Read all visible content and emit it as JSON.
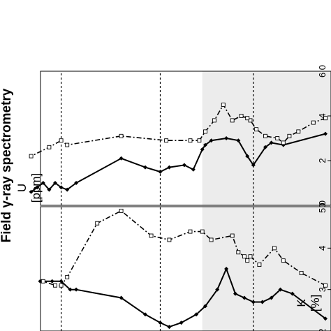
{
  "title": "Field γ-ray spectrometry",
  "panels": [
    {
      "name": "U",
      "unit": "[ppm]"
    },
    {
      "name": "K",
      "unit": "[%]"
    }
  ],
  "chart_data": [
    {
      "type": "line",
      "title": "U",
      "ylabel": "[ppm]",
      "orientation": "rotated-90-ccw",
      "value_axis": {
        "range": [
          0,
          6
        ],
        "ticks": [
          0,
          2,
          4,
          6
        ],
        "tick_labels": [
          "0",
          "2",
          "4",
          "6 0"
        ]
      },
      "position_axis": {
        "range": [
          0,
          100
        ]
      },
      "shaded_interval": [
        0,
        41
      ],
      "dashed_lines": [
        24,
        55,
        88
      ],
      "series": [
        {
          "style": "solid-filled-diamond",
          "x": [
            0,
            14,
            18,
            20,
            24,
            26,
            29,
            33,
            38,
            40,
            41,
            44,
            47,
            52,
            55,
            60,
            68,
            83,
            86,
            88,
            90,
            92,
            94,
            96,
            98
          ],
          "y": [
            3.2,
            2.7,
            2.8,
            2.6,
            1.8,
            2.2,
            2.9,
            3.0,
            2.9,
            2.7,
            2.5,
            1.6,
            1.8,
            1.7,
            1.5,
            1.7,
            2.1,
            1.0,
            0.7,
            0.8,
            1.0,
            0.7,
            1.0,
            0.8,
            0.6
          ]
        },
        {
          "style": "dash-dot-open-square",
          "x": [
            0,
            4,
            9,
            12,
            14,
            16,
            20,
            23,
            25,
            26,
            28,
            31,
            34,
            37,
            40,
            42,
            45,
            53,
            68,
            86,
            88,
            92,
            98
          ],
          "y": [
            3.9,
            3.7,
            3.3,
            3.1,
            2.8,
            3.0,
            3.1,
            3.4,
            3.8,
            3.9,
            4.0,
            3.8,
            4.5,
            3.8,
            3.3,
            2.9,
            2.9,
            2.9,
            3.1,
            2.7,
            2.9,
            2.6,
            2.2
          ]
        }
      ]
    },
    {
      "type": "line",
      "title": "K",
      "ylabel": "[%]",
      "orientation": "rotated-90-ccw",
      "value_axis": {
        "range": [
          2,
          5
        ],
        "ticks": [
          2,
          3,
          4,
          5
        ],
        "tick_labels": [
          "2",
          "3",
          "4",
          "5 0"
        ]
      },
      "position_axis": {
        "range": [
          0,
          100
        ]
      },
      "shaded_interval": [
        0,
        41
      ],
      "dashed_lines": [
        24,
        55,
        88
      ],
      "series": [
        {
          "style": "solid-filled-diamond",
          "x": [
            0,
            11,
            15,
            18,
            21,
            24,
            27,
            30,
            33,
            36,
            40,
            43,
            48,
            52,
            55,
            60,
            68,
            83,
            85,
            88,
            91,
            95
          ],
          "y": [
            2.3,
            2.9,
            3.0,
            2.8,
            2.7,
            2.7,
            2.8,
            2.9,
            3.5,
            3.0,
            2.6,
            2.4,
            2.2,
            2.1,
            2.2,
            2.4,
            2.8,
            3.0,
            3.0,
            3.2,
            3.2,
            3.2
          ]
        },
        {
          "style": "dash-dot-open-square",
          "x": [
            0,
            8,
            14,
            17,
            22,
            25,
            26,
            27,
            29,
            31,
            38,
            41,
            45,
            52,
            58,
            68,
            76,
            86,
            88,
            90,
            94
          ],
          "y": [
            3.1,
            3.4,
            3.7,
            4.0,
            3.6,
            3.8,
            3.7,
            3.8,
            3.9,
            4.3,
            4.2,
            4.4,
            4.4,
            4.2,
            4.3,
            4.9,
            4.6,
            3.3,
            3.1,
            3.1,
            3.2
          ]
        }
      ]
    }
  ]
}
